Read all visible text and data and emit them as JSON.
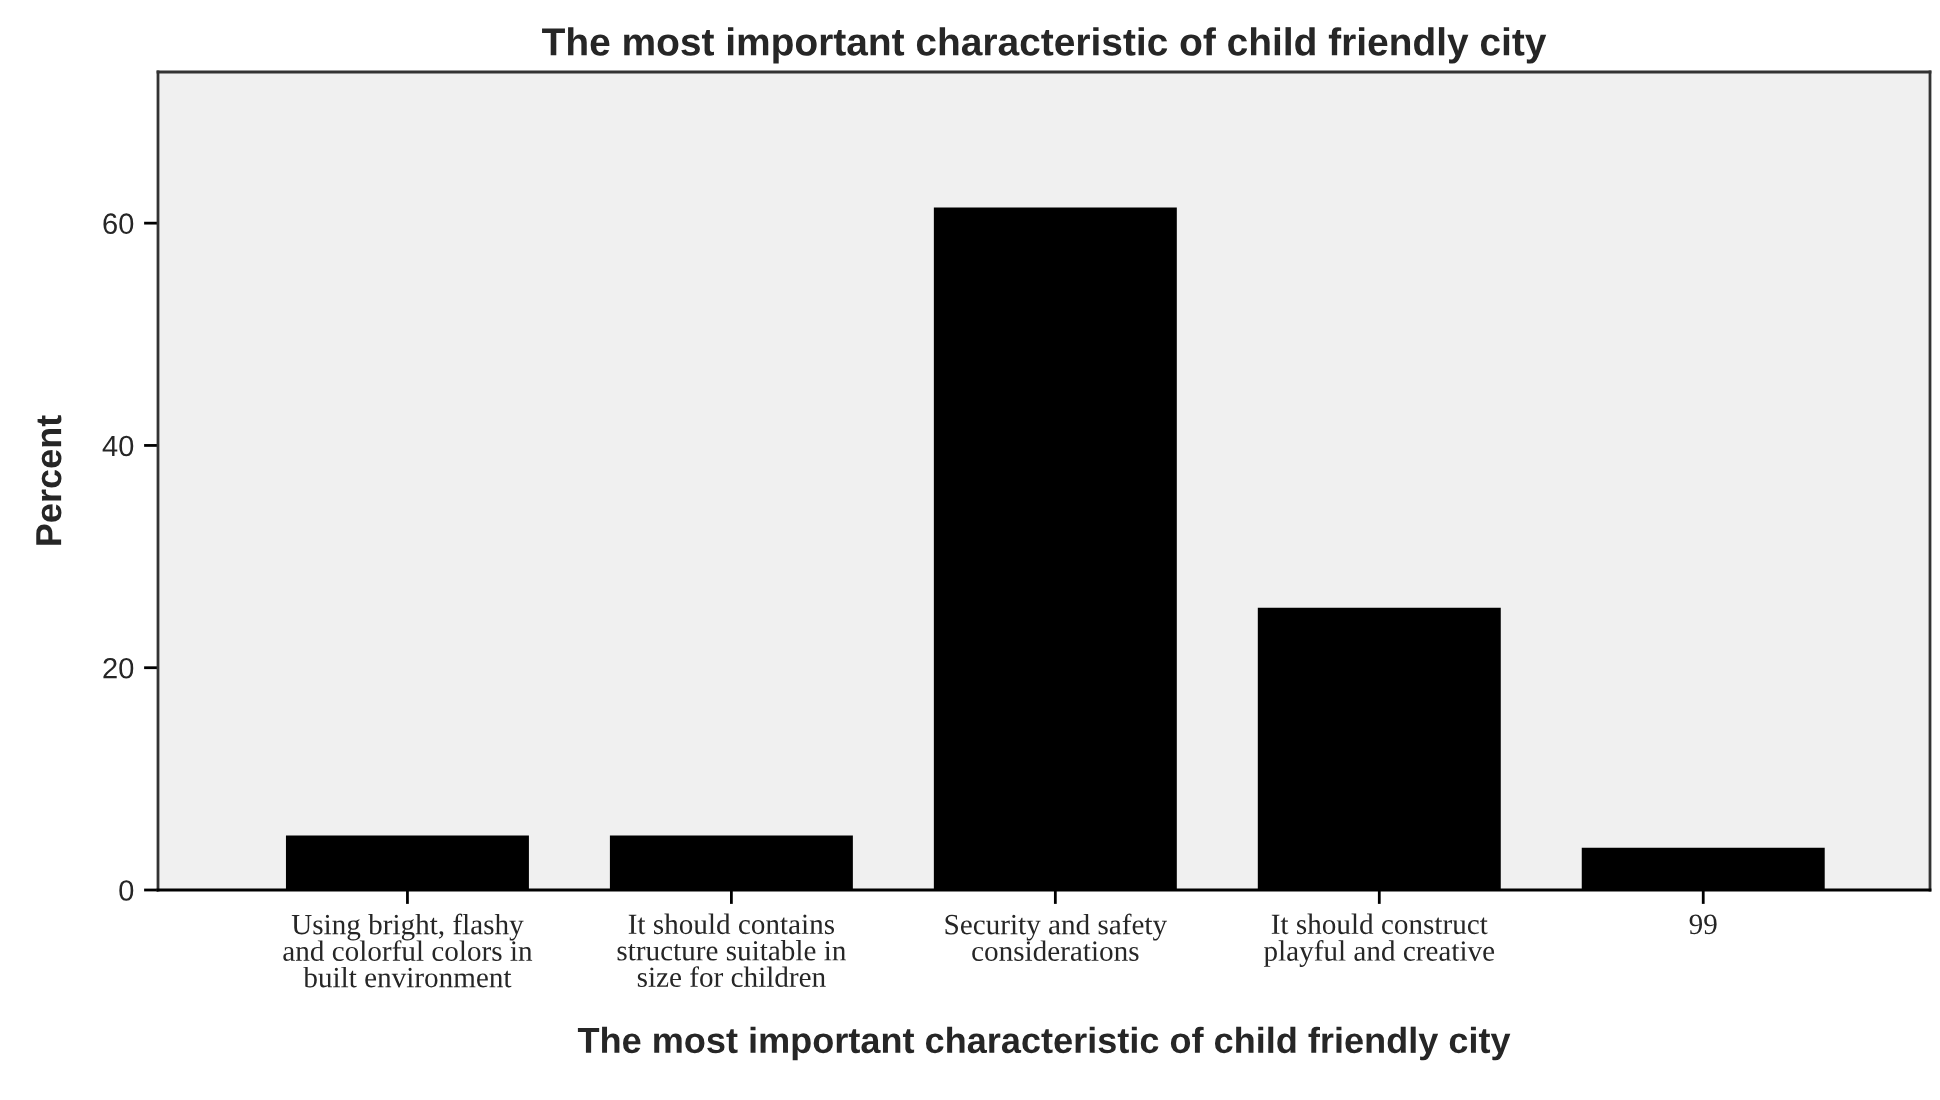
{
  "chart_data": {
    "type": "bar",
    "title": "The most important characteristic of child friendly city",
    "xlabel": "The most important characteristic of child friendly city",
    "ylabel": "Percent",
    "categories": [
      "Using bright, flashy\nand colorful colors in\nbuilt environment",
      "It should contains\nstructure suitable in\nsize for children",
      "Security and safety\nconsiderations",
      "It should construct\nplayful and creative",
      "99"
    ],
    "values": [
      4.9,
      4.9,
      61.4,
      25.4,
      3.8
    ],
    "color": "#000000",
    "ylim": [
      0,
      73.6
    ],
    "yticks": [
      0,
      20,
      40,
      60
    ],
    "grid": false
  }
}
